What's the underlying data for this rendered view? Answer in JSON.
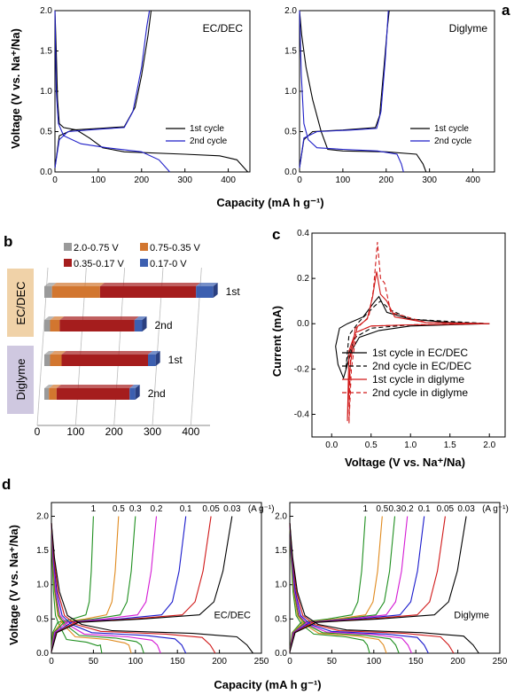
{
  "colors": {
    "black": "#000000",
    "blue": "#1f1fc8",
    "red": "#d01818",
    "green": "#1f8f1f",
    "orange": "#e08a1e",
    "magenta": "#d41ad4",
    "darkblue": "#1a1acc",
    "gray": "#9a9a9a",
    "range_orange": "#d2762f",
    "range_red": "#a51d1d",
    "range_blue": "#3c5fb0",
    "box_tan": "#f0d2a8",
    "box_lav": "#cfc8e0"
  },
  "panels": {
    "a": "a",
    "b": "b",
    "c": "c",
    "d": "d"
  },
  "chart_data": [
    {
      "id": "a-left",
      "type": "line",
      "panel": "a",
      "annotation": "EC/DEC",
      "xlim": [
        0,
        450
      ],
      "ylim": [
        0,
        2.0
      ],
      "xticks": [
        "0",
        "100",
        "200",
        "300",
        "400"
      ],
      "yticks": [
        "0.0",
        "0.5",
        "1.0",
        "1.5",
        "2.0"
      ],
      "ylabel": "Voltage (V vs. Na⁺/Na)",
      "xlabel": "Capacity (mA h g⁻¹)",
      "legend": [
        "1st cycle",
        "2nd cycle"
      ],
      "series": [
        {
          "name": "1st cycle",
          "color": "black",
          "points": [
            [
              0,
              2.0
            ],
            [
              3,
              1.5
            ],
            [
              6,
              0.9
            ],
            [
              10,
              0.6
            ],
            [
              20,
              0.55
            ],
            [
              50,
              0.52
            ],
            [
              80,
              0.42
            ],
            [
              110,
              0.3
            ],
            [
              160,
              0.25
            ],
            [
              300,
              0.22
            ],
            [
              380,
              0.2
            ],
            [
              420,
              0.15
            ],
            [
              445,
              0.0
            ]
          ]
        },
        {
          "name": "1st cycle",
          "color": "black",
          "points": [
            [
              0,
              0.05
            ],
            [
              10,
              0.45
            ],
            [
              40,
              0.52
            ],
            [
              100,
              0.54
            ],
            [
              160,
              0.56
            ],
            [
              185,
              0.8
            ],
            [
              200,
              1.2
            ],
            [
              215,
              1.7
            ],
            [
              222,
              2.0
            ]
          ]
        },
        {
          "name": "2nd cycle",
          "color": "blue",
          "points": [
            [
              0,
              2.0
            ],
            [
              3,
              1.0
            ],
            [
              8,
              0.6
            ],
            [
              20,
              0.45
            ],
            [
              60,
              0.35
            ],
            [
              120,
              0.3
            ],
            [
              200,
              0.25
            ],
            [
              240,
              0.15
            ],
            [
              265,
              0.0
            ]
          ]
        },
        {
          "name": "2nd cycle",
          "color": "blue",
          "points": [
            [
              0,
              0.05
            ],
            [
              10,
              0.4
            ],
            [
              30,
              0.5
            ],
            [
              100,
              0.53
            ],
            [
              160,
              0.55
            ],
            [
              180,
              0.75
            ],
            [
              200,
              1.3
            ],
            [
              212,
              1.8
            ],
            [
              218,
              2.0
            ]
          ]
        }
      ]
    },
    {
      "id": "a-right",
      "type": "line",
      "panel": "a",
      "annotation": "Diglyme",
      "xlim": [
        0,
        450
      ],
      "ylim": [
        0,
        2.0
      ],
      "xticks": [
        "0",
        "100",
        "200",
        "300",
        "400"
      ],
      "yticks": [
        "0.0",
        "0.5",
        "1.0",
        "1.5",
        "2.0"
      ],
      "legend": [
        "1st cycle",
        "2nd cycle"
      ],
      "series": [
        {
          "name": "1st cycle",
          "color": "black",
          "points": [
            [
              0,
              2.0
            ],
            [
              5,
              1.7
            ],
            [
              15,
              1.3
            ],
            [
              30,
              0.9
            ],
            [
              50,
              0.5
            ],
            [
              65,
              0.28
            ],
            [
              100,
              0.26
            ],
            [
              200,
              0.25
            ],
            [
              270,
              0.22
            ],
            [
              285,
              0.1
            ],
            [
              292,
              0.0
            ]
          ]
        },
        {
          "name": "1st cycle",
          "color": "black",
          "points": [
            [
              0,
              0.05
            ],
            [
              10,
              0.4
            ],
            [
              30,
              0.5
            ],
            [
              100,
              0.52
            ],
            [
              175,
              0.55
            ],
            [
              185,
              0.7
            ],
            [
              195,
              1.3
            ],
            [
              203,
              1.8
            ],
            [
              207,
              2.0
            ]
          ]
        },
        {
          "name": "2nd cycle",
          "color": "blue",
          "points": [
            [
              0,
              2.0
            ],
            [
              4,
              1.2
            ],
            [
              10,
              0.6
            ],
            [
              20,
              0.4
            ],
            [
              40,
              0.3
            ],
            [
              100,
              0.28
            ],
            [
              180,
              0.26
            ],
            [
              225,
              0.22
            ],
            [
              235,
              0.1
            ],
            [
              240,
              0.0
            ]
          ]
        },
        {
          "name": "2nd cycle",
          "color": "blue",
          "points": [
            [
              0,
              0.05
            ],
            [
              10,
              0.42
            ],
            [
              40,
              0.5
            ],
            [
              120,
              0.52
            ],
            [
              178,
              0.54
            ],
            [
              188,
              0.75
            ],
            [
              198,
              1.4
            ],
            [
              205,
              2.0
            ]
          ]
        }
      ]
    },
    {
      "id": "b",
      "type": "bar",
      "panel": "b",
      "xlim": [
        0,
        450
      ],
      "xticks": [
        "0",
        "100",
        "200",
        "300",
        "400"
      ],
      "legend": [
        "2.0-0.75 V",
        "0.75-0.35 V",
        "0.35-0.17 V",
        "0.17-0 V"
      ],
      "groups": [
        "EC/DEC",
        "Diglyme"
      ],
      "bars": [
        {
          "group": "EC/DEC",
          "label": "1st",
          "segments": [
            20,
            125,
            250,
            45
          ]
        },
        {
          "group": "EC/DEC",
          "label": "2nd",
          "segments": [
            15,
            25,
            195,
            20
          ]
        },
        {
          "group": "Diglyme",
          "label": "1st",
          "segments": [
            15,
            30,
            225,
            20
          ]
        },
        {
          "group": "Diglyme",
          "label": "2nd",
          "segments": [
            12,
            20,
            190,
            15
          ]
        }
      ]
    },
    {
      "id": "c",
      "type": "line",
      "panel": "c",
      "xlim": [
        -0.25,
        2.2
      ],
      "ylim": [
        -0.5,
        0.4
      ],
      "xticks": [
        "0.0",
        "0.5",
        "1.0",
        "1.5",
        "2.0"
      ],
      "yticks": [
        "-0.4",
        "-0.2",
        "0.0",
        "0.2",
        "0.4"
      ],
      "ylabel": "Current (mA)",
      "xlabel": "Voltage (V vs. Na⁺/Na)",
      "legend": [
        "1st cycle in EC/DEC",
        "2nd cycle in EC/DEC",
        "1st cycle in diglyme",
        "2nd cycle in diglyme"
      ],
      "series": [
        {
          "name": "1st cycle in EC/DEC",
          "color": "black",
          "dash": false,
          "points": [
            [
              2.0,
              0.0
            ],
            [
              1.5,
              -0.005
            ],
            [
              1.0,
              -0.01
            ],
            [
              0.6,
              -0.03
            ],
            [
              0.35,
              -0.06
            ],
            [
              0.25,
              -0.12
            ],
            [
              0.15,
              -0.24
            ],
            [
              0.08,
              -0.18
            ],
            [
              0.05,
              -0.1
            ],
            [
              0.1,
              -0.02
            ],
            [
              0.2,
              0.0
            ],
            [
              0.4,
              0.03
            ],
            [
              0.55,
              0.1
            ],
            [
              0.6,
              0.12
            ],
            [
              0.7,
              0.05
            ],
            [
              1.0,
              0.02
            ],
            [
              1.5,
              0.005
            ],
            [
              2.0,
              0.0
            ]
          ]
        },
        {
          "name": "2nd cycle in EC/DEC",
          "color": "black",
          "dash": true,
          "points": [
            [
              2.0,
              0.0
            ],
            [
              1.0,
              -0.005
            ],
            [
              0.5,
              -0.02
            ],
            [
              0.3,
              -0.06
            ],
            [
              0.2,
              -0.15
            ],
            [
              0.18,
              -0.2
            ],
            [
              0.22,
              -0.05
            ],
            [
              0.35,
              0.01
            ],
            [
              0.55,
              0.08
            ],
            [
              0.62,
              0.1
            ],
            [
              0.75,
              0.06
            ],
            [
              1.0,
              0.02
            ],
            [
              2.0,
              0.0
            ]
          ]
        },
        {
          "name": "1st cycle in diglyme",
          "color": "red",
          "dash": false,
          "points": [
            [
              2.0,
              0.0
            ],
            [
              1.0,
              -0.005
            ],
            [
              0.5,
              -0.01
            ],
            [
              0.3,
              -0.04
            ],
            [
              0.22,
              -0.12
            ],
            [
              0.2,
              -0.43
            ],
            [
              0.23,
              -0.2
            ],
            [
              0.3,
              -0.02
            ],
            [
              0.45,
              0.02
            ],
            [
              0.52,
              0.12
            ],
            [
              0.57,
              0.23
            ],
            [
              0.62,
              0.13
            ],
            [
              0.7,
              0.1
            ],
            [
              0.8,
              0.03
            ],
            [
              1.2,
              0.005
            ],
            [
              2.0,
              0.0
            ]
          ]
        },
        {
          "name": "2nd cycle in diglyme",
          "color": "red",
          "dash": true,
          "points": [
            [
              2.0,
              0.0
            ],
            [
              1.0,
              -0.005
            ],
            [
              0.5,
              -0.01
            ],
            [
              0.3,
              -0.04
            ],
            [
              0.24,
              -0.12
            ],
            [
              0.22,
              -0.44
            ],
            [
              0.25,
              -0.2
            ],
            [
              0.32,
              -0.02
            ],
            [
              0.47,
              0.03
            ],
            [
              0.53,
              0.15
            ],
            [
              0.58,
              0.36
            ],
            [
              0.62,
              0.2
            ],
            [
              0.67,
              0.18
            ],
            [
              0.75,
              0.05
            ],
            [
              1.2,
              0.005
            ],
            [
              2.0,
              0.0
            ]
          ]
        }
      ]
    },
    {
      "id": "d-left",
      "type": "line",
      "panel": "d",
      "annotation": "EC/DEC",
      "rate_labels": [
        "1",
        "0.5",
        "0.3",
        "0.2",
        "0.1",
        "0.05",
        "0.03",
        "(A g⁻¹)"
      ],
      "xlim": [
        0,
        250
      ],
      "ylim": [
        0,
        2.2
      ],
      "xticks": [
        "0",
        "50",
        "100",
        "150",
        "200",
        "250"
      ],
      "yticks": [
        "0.0",
        "0.5",
        "1.0",
        "1.5",
        "2.0"
      ],
      "ylabel": "Voltage (V vs. Na⁺/Na)",
      "xlabel": "Capacity (mA h g⁻¹)",
      "series": [
        {
          "name": "1",
          "color": "green",
          "cap_charge": 50,
          "cap_discharge": 60,
          "v_base": 0.2
        },
        {
          "name": "0.5",
          "color": "orange",
          "cap_charge": 80,
          "cap_discharge": 95,
          "v_base": 0.24
        },
        {
          "name": "0.3",
          "color": "green",
          "cap_charge": 100,
          "cap_discharge": 110,
          "v_base": 0.26
        },
        {
          "name": "0.2",
          "color": "magenta",
          "cap_charge": 125,
          "cap_discharge": 130,
          "v_base": 0.28
        },
        {
          "name": "0.1",
          "color": "darkblue",
          "cap_charge": 160,
          "cap_discharge": 160,
          "v_base": 0.3
        },
        {
          "name": "0.05",
          "color": "red",
          "cap_charge": 190,
          "cap_discharge": 195,
          "v_base": 0.32
        },
        {
          "name": "0.03",
          "color": "black",
          "cap_charge": 215,
          "cap_discharge": 240,
          "v_base": 0.33
        }
      ]
    },
    {
      "id": "d-right",
      "type": "line",
      "panel": "d",
      "annotation": "Diglyme",
      "rate_labels": [
        "1",
        "0.5",
        "0.3",
        "0.2",
        "0.1",
        "0.05",
        "0.03",
        "(A g⁻¹)"
      ],
      "xlim": [
        0,
        250
      ],
      "ylim": [
        0,
        2.2
      ],
      "xticks": [
        "0",
        "50",
        "100",
        "150",
        "200",
        "250"
      ],
      "yticks": [
        "0.0",
        "0.5",
        "1.0",
        "1.5",
        "2.0"
      ],
      "series": [
        {
          "name": "1",
          "color": "green",
          "cap_charge": 90,
          "cap_discharge": 95,
          "v_base": 0.28
        },
        {
          "name": "0.5",
          "color": "orange",
          "cap_charge": 110,
          "cap_discharge": 115,
          "v_base": 0.29
        },
        {
          "name": "0.3",
          "color": "green",
          "cap_charge": 125,
          "cap_discharge": 130,
          "v_base": 0.3
        },
        {
          "name": "0.2",
          "color": "magenta",
          "cap_charge": 140,
          "cap_discharge": 145,
          "v_base": 0.31
        },
        {
          "name": "0.1",
          "color": "darkblue",
          "cap_charge": 160,
          "cap_discharge": 165,
          "v_base": 0.32
        },
        {
          "name": "0.05",
          "color": "red",
          "cap_charge": 185,
          "cap_discharge": 195,
          "v_base": 0.33
        },
        {
          "name": "0.03",
          "color": "black",
          "cap_charge": 210,
          "cap_discharge": 225,
          "v_base": 0.34
        }
      ]
    }
  ]
}
